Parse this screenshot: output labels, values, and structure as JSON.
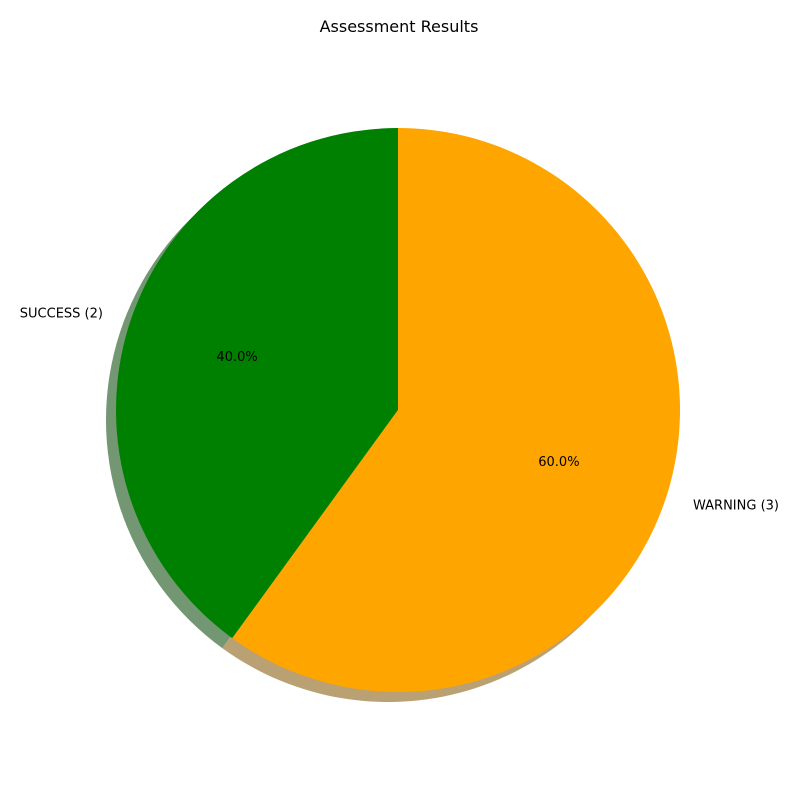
{
  "chart_data": {
    "type": "pie",
    "title": "Assessment Results",
    "slices": [
      {
        "label": "SUCCESS (2)",
        "value": 2,
        "percent_label": "40.0%",
        "color": "#008000"
      },
      {
        "label": "WARNING (3)",
        "value": 3,
        "percent_label": "60.0%",
        "color": "#FFA500"
      }
    ],
    "start_angle_deg": 90,
    "direction": "counterclockwise",
    "shadow": true,
    "legend": "none"
  }
}
